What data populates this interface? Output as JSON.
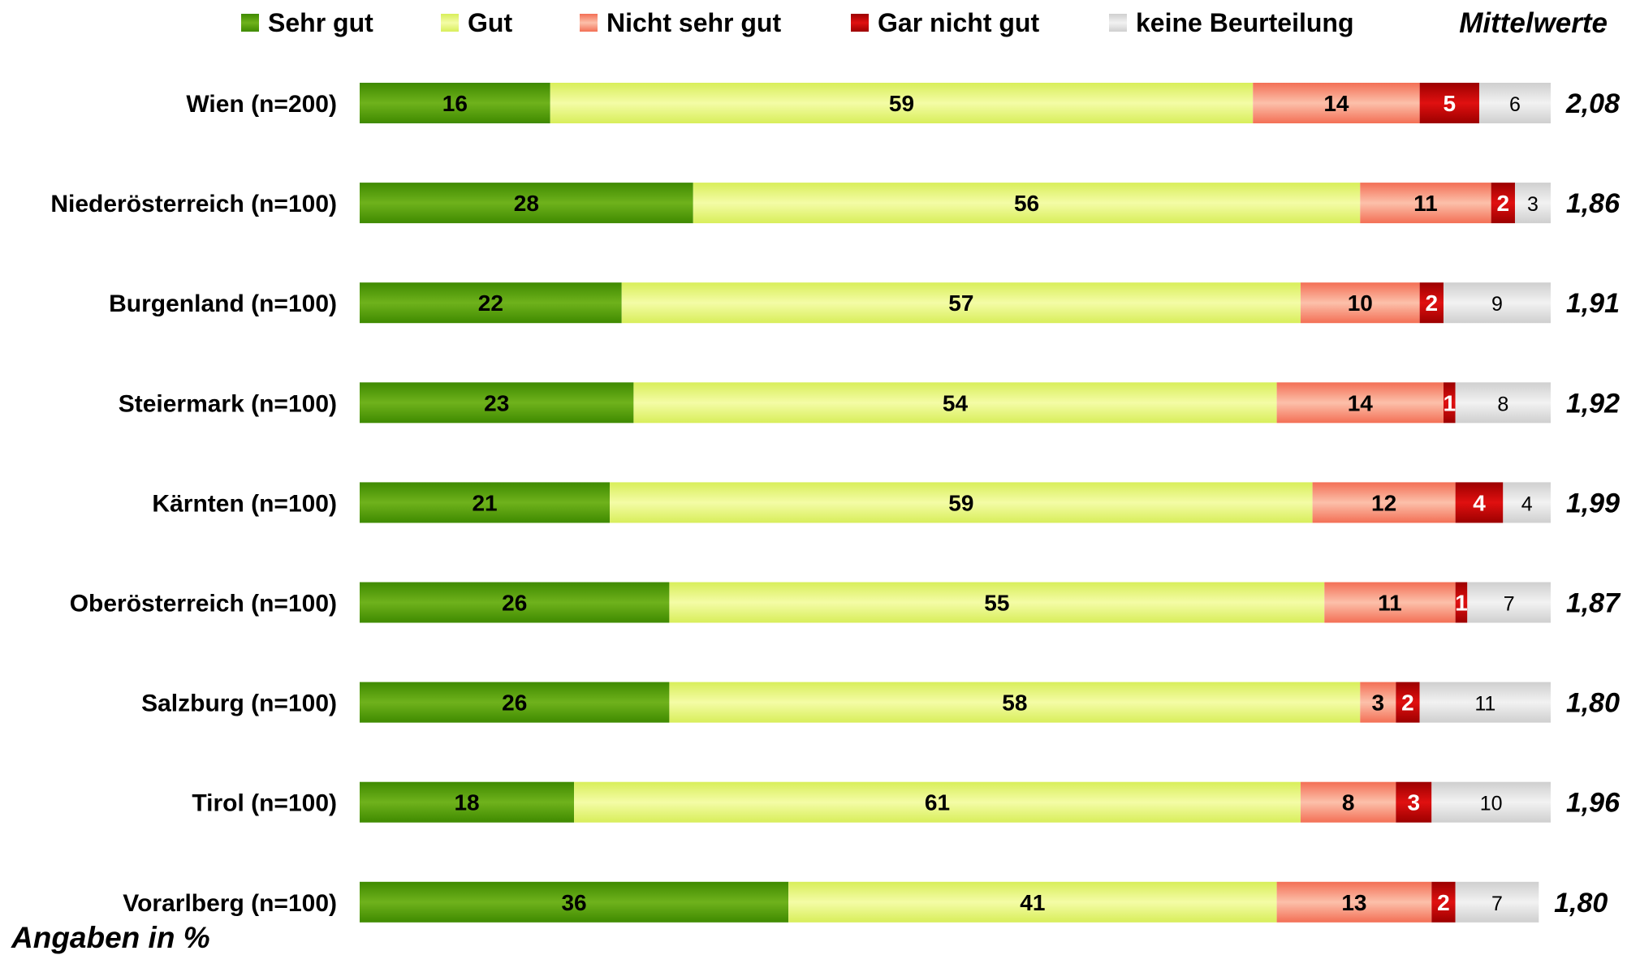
{
  "chart_data": {
    "type": "bar",
    "orientation": "horizontal",
    "stacked": true,
    "legend_position": "top",
    "mean_header": "Mittelwerte",
    "unit_note": "Angaben in %",
    "categories": [
      "Wien (n=200)",
      "Niederösterreich (n=100)",
      "Burgenland (n=100)",
      "Steiermark (n=100)",
      "Kärnten (n=100)",
      "Oberösterreich (n=100)",
      "Salzburg (n=100)",
      "Tirol (n=100)",
      "Vorarlberg (n=100)"
    ],
    "series": [
      {
        "name": "Sehr gut",
        "color": "#4e9a06",
        "values": [
          16,
          28,
          22,
          23,
          21,
          26,
          26,
          18,
          36
        ]
      },
      {
        "name": "Gut",
        "color": "#e6f47a",
        "values": [
          59,
          56,
          57,
          54,
          59,
          55,
          58,
          61,
          41
        ]
      },
      {
        "name": "Nicht sehr gut",
        "color": "#f89a80",
        "values": [
          14,
          11,
          10,
          14,
          12,
          11,
          3,
          8,
          13
        ]
      },
      {
        "name": "Gar nicht gut",
        "color": "#c00000",
        "values": [
          5,
          2,
          2,
          1,
          4,
          1,
          2,
          3,
          2
        ]
      },
      {
        "name": "keine Beurteilung",
        "color": "#dcdcdc",
        "values": [
          6,
          3,
          9,
          8,
          4,
          7,
          11,
          10,
          7
        ]
      }
    ],
    "means": [
      "2,08",
      "1,86",
      "1,91",
      "1,92",
      "1,99",
      "1,87",
      "1,80",
      "1,96",
      "1,80"
    ]
  }
}
